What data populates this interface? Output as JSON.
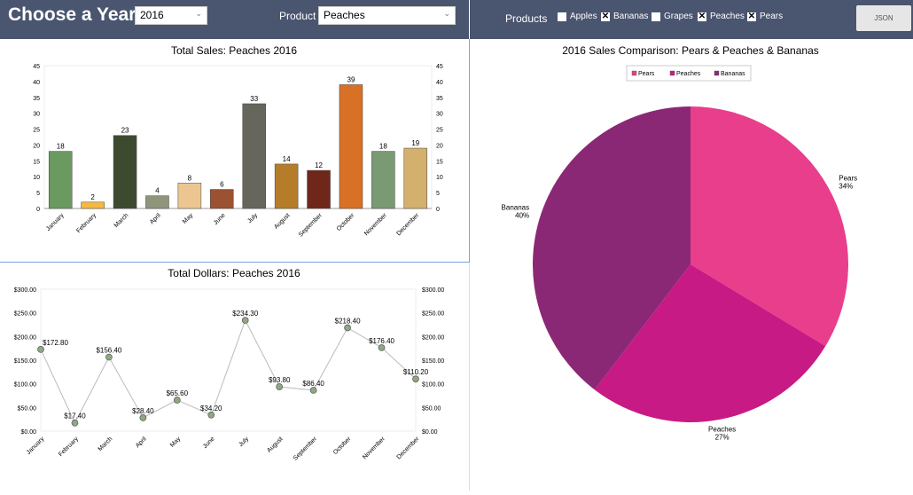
{
  "header": {
    "title": "Choose a Year",
    "year": "2016",
    "product_label": "Product",
    "product": "Peaches",
    "products_label": "Products",
    "checkboxes": [
      {
        "label": "Apples",
        "checked": false
      },
      {
        "label": "Bananas",
        "checked": true
      },
      {
        "label": "Grapes",
        "checked": false
      },
      {
        "label": "Peaches",
        "checked": true
      },
      {
        "label": "Pears",
        "checked": true
      }
    ],
    "json_button": "JSON"
  },
  "chart_data": [
    {
      "type": "bar",
      "title": "Total Sales: Peaches 2016",
      "categories": [
        "January",
        "February",
        "March",
        "April",
        "May",
        "June",
        "July",
        "August",
        "September",
        "October",
        "November",
        "December"
      ],
      "values": [
        18,
        2,
        23,
        4,
        8,
        6,
        33,
        14,
        12,
        39,
        18,
        19
      ],
      "ylim": [
        0,
        45
      ],
      "yticks": [
        0,
        5,
        10,
        15,
        20,
        25,
        30,
        35,
        40,
        45
      ],
      "colors": [
        "#6a9a5f",
        "#f5b942",
        "#3d4a30",
        "#8e957a",
        "#ecc690",
        "#9b5232",
        "#66665c",
        "#b57d2a",
        "#6e2718",
        "#d87025",
        "#7a9a74",
        "#d4b06e"
      ]
    },
    {
      "type": "line",
      "title": "Total Dollars: Peaches 2016",
      "categories": [
        "January",
        "February",
        "March",
        "April",
        "May",
        "June",
        "July",
        "August",
        "September",
        "October",
        "November",
        "December"
      ],
      "values": [
        172.8,
        17.4,
        156.4,
        28.4,
        65.6,
        34.2,
        234.3,
        93.8,
        86.4,
        218.4,
        176.4,
        110.2
      ],
      "labels": [
        "$172.80",
        "$17.40",
        "$156.40",
        "$28.40",
        "$65.60",
        "$34.20",
        "$234.30",
        "$93.80",
        "$86.40",
        "$218.40",
        "$176.40",
        "$110.20"
      ],
      "ylim": [
        0,
        300
      ],
      "yticks": [
        "$0.00",
        "$50.00",
        "$100.00",
        "$150.00",
        "$200.00",
        "$250.00",
        "$300.00"
      ]
    },
    {
      "type": "pie",
      "title": "2016 Sales Comparison: Pears & Peaches & Bananas",
      "legend": "top",
      "slices": [
        {
          "name": "Pears",
          "pct": "34%",
          "value": 34,
          "color": "#e83e8c"
        },
        {
          "name": "Peaches",
          "pct": "27%",
          "value": 27,
          "color": "#c71a85"
        },
        {
          "name": "Bananas",
          "pct": "40%",
          "value": 40,
          "color": "#8b2875"
        }
      ]
    }
  ]
}
